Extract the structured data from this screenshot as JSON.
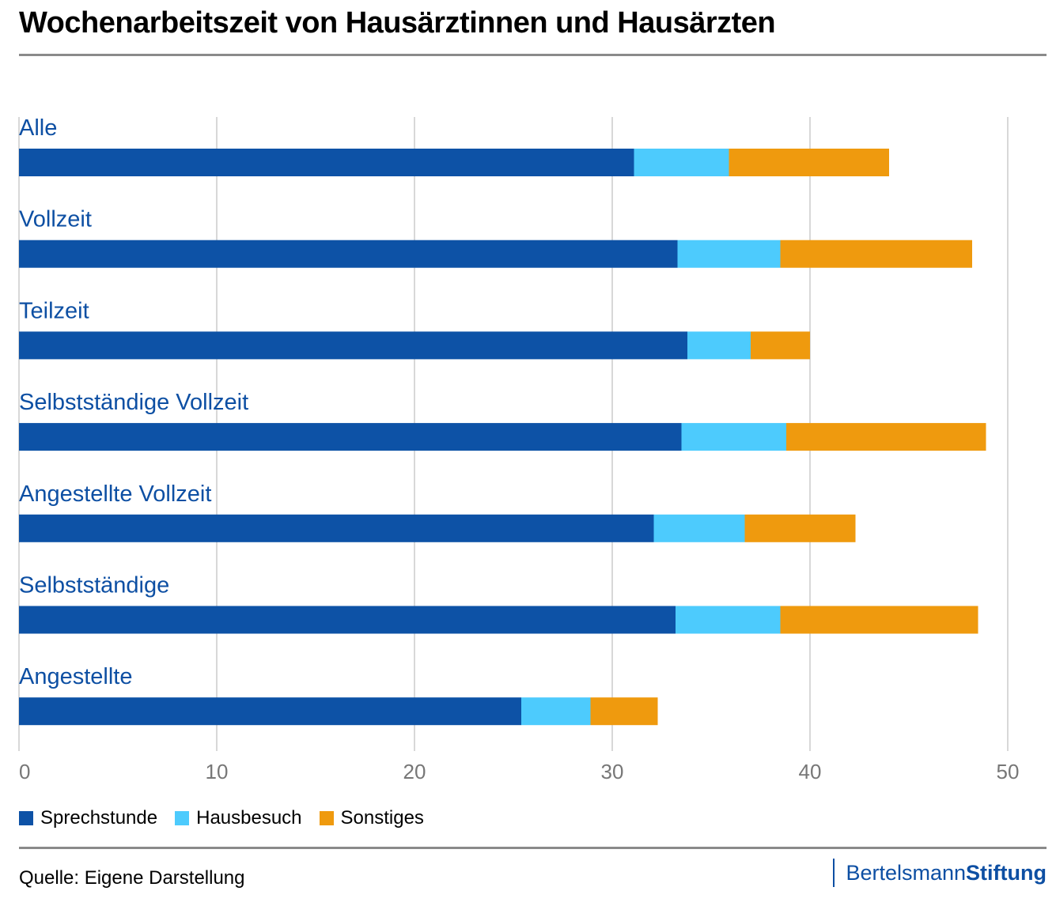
{
  "title": "Wochenarbeitszeit von Hausärztinnen und Hausärzten",
  "source": "Quelle: Eigene Darstellung",
  "brand": {
    "part1": "Bertelsmann",
    "part2": "Stiftung"
  },
  "colors": {
    "Sprechstunde": "#0d52a6",
    "Hausbesuch": "#4dcbfd",
    "Sonstiges": "#ef9a0e",
    "category_label": "#0d4fa3",
    "grid": "#cccccc",
    "tick": "#777777"
  },
  "chart_data": {
    "type": "bar",
    "orientation": "horizontal",
    "stacked": true,
    "title": "Wochenarbeitszeit von Hausärztinnen und Hausärzten",
    "categories": [
      "Alle",
      "Vollzeit",
      "Teilzeit",
      "Selbstständige Vollzeit",
      "Angestellte Vollzeit",
      "Selbstständige",
      "Angestellte"
    ],
    "series": [
      {
        "name": "Sprechstunde",
        "values": [
          31.1,
          33.3,
          33.8,
          33.5,
          32.1,
          33.2,
          25.4
        ]
      },
      {
        "name": "Hausbesuch",
        "values": [
          4.8,
          5.2,
          3.2,
          5.3,
          4.6,
          5.3,
          3.5
        ]
      },
      {
        "name": "Sonstiges",
        "values": [
          8.1,
          9.7,
          3.0,
          10.1,
          5.6,
          10.0,
          3.4
        ]
      }
    ],
    "xlim": [
      0,
      50
    ],
    "xticks": [
      0,
      10,
      20,
      30,
      40,
      50
    ],
    "xlabel": "",
    "ylabel": "",
    "grid": true,
    "legend": "bottom-left"
  }
}
